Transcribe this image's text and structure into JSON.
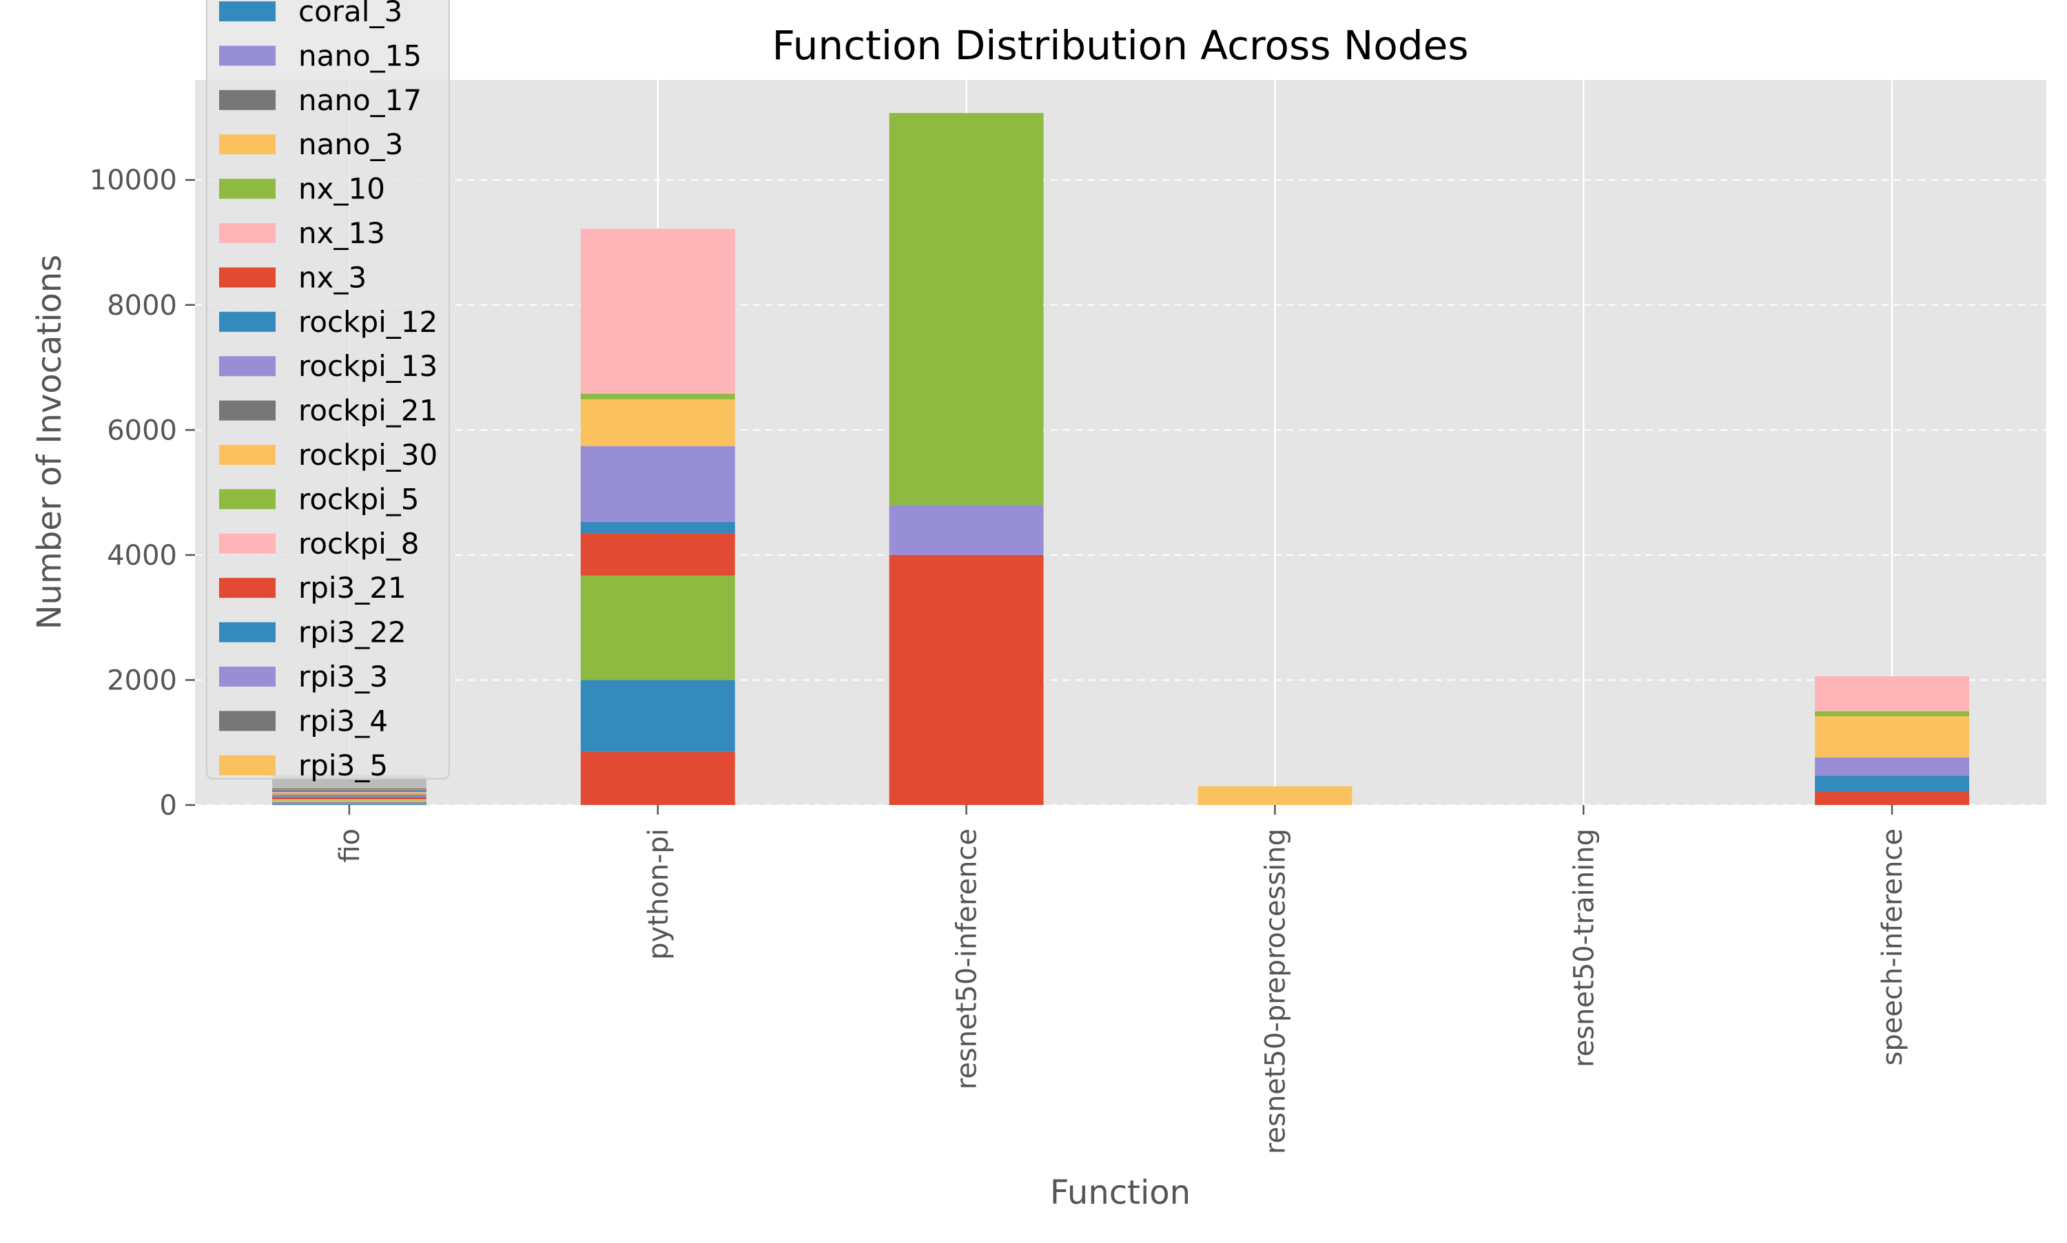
{
  "chart_data": {
    "type": "bar",
    "stacked": true,
    "title": "Function Distribution Across Nodes",
    "xlabel": "Function",
    "ylabel": "Number of Invocations",
    "categories": [
      "fio",
      "python-pi",
      "resnet50-inference",
      "resnet50-preprocessing",
      "resnet50-training",
      "speech-inference"
    ],
    "ylim": [
      0,
      11600
    ],
    "yticks": [
      0,
      2000,
      4000,
      6000,
      8000,
      10000
    ],
    "ytick_labels": [
      "0",
      "2000",
      "4000",
      "6000",
      "8000",
      "10000"
    ],
    "grid": true,
    "legend_position": "upper-left",
    "series": [
      {
        "name": "coral_3",
        "color": "#348ABD",
        "values": [
          15,
          0,
          0,
          0,
          0,
          0
        ]
      },
      {
        "name": "nano_15",
        "color": "#988ED5",
        "values": [
          15,
          0,
          0,
          0,
          0,
          0
        ]
      },
      {
        "name": "nano_17",
        "color": "#777777",
        "values": [
          15,
          0,
          0,
          0,
          0,
          0
        ]
      },
      {
        "name": "nano_3",
        "color": "#FBC15E",
        "values": [
          15,
          0,
          0,
          0,
          0,
          0
        ]
      },
      {
        "name": "nx_10",
        "color": "#8EBA42",
        "values": [
          15,
          0,
          0,
          0,
          0,
          0
        ]
      },
      {
        "name": "nx_13",
        "color": "#FFB5B8",
        "values": [
          15,
          0,
          0,
          0,
          0,
          0
        ]
      },
      {
        "name": "nx_3",
        "color": "#E24A33",
        "values": [
          30,
          850,
          4000,
          0,
          0,
          0
        ]
      },
      {
        "name": "rockpi_12",
        "color": "#348ABD",
        "values": [
          15,
          1150,
          0,
          0,
          0,
          0
        ]
      },
      {
        "name": "rockpi_13",
        "color": "#988ED5",
        "values": [
          15,
          0,
          800,
          0,
          0,
          0
        ]
      },
      {
        "name": "rockpi_21",
        "color": "#777777",
        "values": [
          15,
          0,
          0,
          0,
          0,
          0
        ]
      },
      {
        "name": "rockpi_30",
        "color": "#FBC15E",
        "values": [
          15,
          0,
          0,
          300,
          0,
          0
        ]
      },
      {
        "name": "rockpi_5",
        "color": "#8EBA42",
        "values": [
          15,
          1670,
          6270,
          0,
          0,
          0
        ]
      },
      {
        "name": "rockpi_8",
        "color": "#FFB5B8",
        "values": [
          15,
          0,
          0,
          0,
          0,
          0
        ]
      },
      {
        "name": "rpi3_21",
        "color": "#E24A33",
        "values": [
          15,
          680,
          0,
          0,
          0,
          210
        ]
      },
      {
        "name": "rpi3_22",
        "color": "#348ABD",
        "values": [
          15,
          180,
          0,
          0,
          0,
          260
        ]
      },
      {
        "name": "rpi3_3",
        "color": "#988ED5",
        "values": [
          15,
          1210,
          0,
          0,
          0,
          290
        ]
      },
      {
        "name": "rpi3_4",
        "color": "#777777",
        "values": [
          15,
          0,
          0,
          0,
          0,
          0
        ]
      },
      {
        "name": "rpi3_5",
        "color": "#FBC15E",
        "values": [
          15,
          750,
          0,
          0,
          0,
          660
        ]
      },
      {
        "name": "",
        "color": "#8EBA42",
        "values": [
          0,
          90,
          0,
          0,
          0,
          80
        ]
      },
      {
        "name": "",
        "color": "#FFB5B8",
        "values": [
          0,
          2640,
          0,
          0,
          0,
          560
        ]
      },
      {
        "name": "",
        "color": "#BBBBBB",
        "values": [
          200,
          0,
          0,
          0,
          0,
          0
        ]
      }
    ]
  }
}
